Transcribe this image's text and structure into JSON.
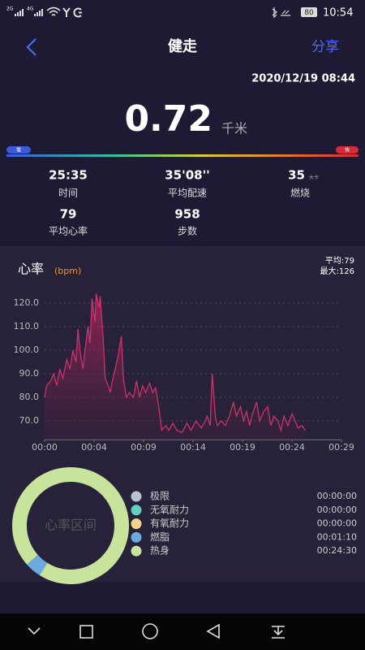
{
  "status_bar": {
    "network_1": "2G",
    "network_2": "4G",
    "battery": "80",
    "time": "10:54"
  },
  "header": {
    "title": "健走",
    "share": "分享"
  },
  "datetime": "2020/12/19 08:44",
  "distance": {
    "value": "0.72",
    "unit": "千米"
  },
  "pace_bar": {
    "slow": "慢",
    "fast": "快"
  },
  "stats": [
    {
      "value": "25:35",
      "label": "时间"
    },
    {
      "value": "35'08''",
      "label": "平均配速"
    },
    {
      "value": "35",
      "unit": "大卡",
      "label": "燃烧"
    },
    {
      "value": "79",
      "label": "平均心率"
    },
    {
      "value": "958",
      "label": "步数"
    }
  ],
  "chart_data": [
    {
      "type": "line",
      "title": "心率",
      "subtitle": "(bpm)",
      "annotations": [
        "平均:79",
        "最大:126"
      ],
      "color": "#c8336a",
      "x": [
        0,
        0.2,
        0.6,
        0.9,
        1.2,
        1.5,
        1.8,
        2.2,
        2.5,
        2.8,
        3.1,
        3.3,
        3.5,
        3.8,
        4.0,
        4.3,
        4.5,
        4.7,
        5.0,
        5.1,
        5.4,
        5.5,
        5.8,
        6.0,
        6.3,
        6.5,
        6.7,
        7.0,
        7.3,
        7.6,
        7.8,
        8.1,
        8.4,
        8.8,
        9.1,
        9.4,
        9.7,
        10.0,
        10.4,
        10.7,
        11.0,
        11.3,
        11.6,
        12.0,
        12.3,
        12.7,
        13.1,
        13.6,
        14.1,
        14.5,
        15.0,
        15.5,
        15.8,
        16.1,
        16.4,
        16.6,
        16.9,
        17.1,
        17.5,
        17.9,
        18.3,
        18.7,
        19.0,
        19.4,
        19.7,
        20.0,
        20.3,
        20.6,
        21.0,
        21.3,
        21.7,
        22.1,
        22.4,
        22.7,
        23.1,
        23.4,
        23.7,
        24.1,
        24.5,
        24.8,
        25.1,
        25.5,
        25.8
      ],
      "values": [
        80,
        85,
        87,
        90,
        85,
        92,
        88,
        96,
        92,
        100,
        95,
        109,
        100,
        92,
        100,
        110,
        103,
        122,
        112,
        124,
        118,
        123,
        105,
        88,
        85,
        82,
        87,
        92,
        98,
        106,
        88,
        80,
        82,
        80,
        87,
        80,
        85,
        82,
        86,
        82,
        84,
        76,
        66,
        68,
        66,
        69,
        66,
        65,
        69,
        66,
        70,
        67,
        69,
        72,
        68,
        90,
        72,
        68,
        70,
        68,
        72,
        78,
        72,
        76,
        70,
        74,
        68,
        73,
        78,
        70,
        74,
        76,
        68,
        72,
        70,
        66,
        72,
        68,
        73,
        70,
        67,
        68,
        66
      ],
      "xlim": [
        0,
        29.4
      ],
      "xticks": [
        {
          "value": 0,
          "label": "00:00"
        },
        {
          "value": 4.9,
          "label": "00:04"
        },
        {
          "value": 9.8,
          "label": "00:09"
        },
        {
          "value": 14.7,
          "label": "00:14"
        },
        {
          "value": 19.6,
          "label": "00:19"
        },
        {
          "value": 24.5,
          "label": "00:24"
        },
        {
          "value": 29.4,
          "label": "00:29"
        }
      ],
      "ylim": [
        62,
        125
      ],
      "yticks": [
        {
          "value": 70,
          "label": "70.0"
        },
        {
          "value": 80,
          "label": "80.0"
        },
        {
          "value": 90,
          "label": "90.0"
        },
        {
          "value": 100,
          "label": "100.0"
        },
        {
          "value": 110,
          "label": "110.0"
        },
        {
          "value": 120,
          "label": "120.0"
        }
      ],
      "grid": true
    },
    {
      "type": "pie",
      "title": "心率区间",
      "donut": true,
      "categories": [
        "极限",
        "无氧耐力",
        "有氧耐力",
        "燃脂",
        "热身"
      ],
      "values": [
        0,
        0,
        0,
        70,
        1470
      ],
      "value_labels": [
        "00:00:00",
        "00:00:00",
        "00:00:00",
        "00:01:10",
        "00:24:30"
      ],
      "colors": [
        "#b9c3cf",
        "#5ed3c2",
        "#f3d28c",
        "#6ba9e1",
        "#c8e39c"
      ]
    }
  ]
}
